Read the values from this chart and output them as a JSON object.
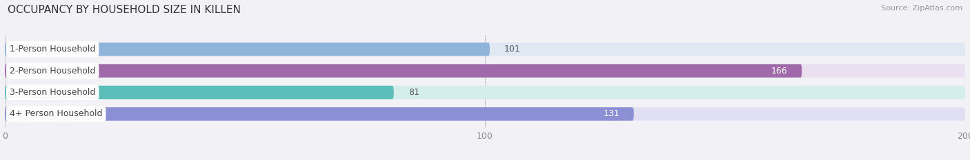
{
  "title": "OCCUPANCY BY HOUSEHOLD SIZE IN KILLEN",
  "source": "Source: ZipAtlas.com",
  "categories": [
    "1-Person Household",
    "2-Person Household",
    "3-Person Household",
    "4+ Person Household"
  ],
  "values": [
    101,
    166,
    81,
    131
  ],
  "bar_colors": [
    "#8fb3d9",
    "#a06aaa",
    "#5dbdb8",
    "#8b8fd4"
  ],
  "bar_bg_colors": [
    "#e0e8f4",
    "#ebe0f0",
    "#d4eeec",
    "#e0e0f2"
  ],
  "xlim": [
    -5,
    205
  ],
  "data_xlim": [
    0,
    200
  ],
  "xticks": [
    0,
    100,
    200
  ],
  "background_color": "#f2f2f6",
  "title_fontsize": 11,
  "source_fontsize": 8,
  "label_fontsize": 9,
  "value_fontsize": 9,
  "tick_fontsize": 9,
  "value_inside_indices": [
    1,
    3
  ],
  "figsize": [
    14.06,
    2.33
  ],
  "dpi": 100
}
